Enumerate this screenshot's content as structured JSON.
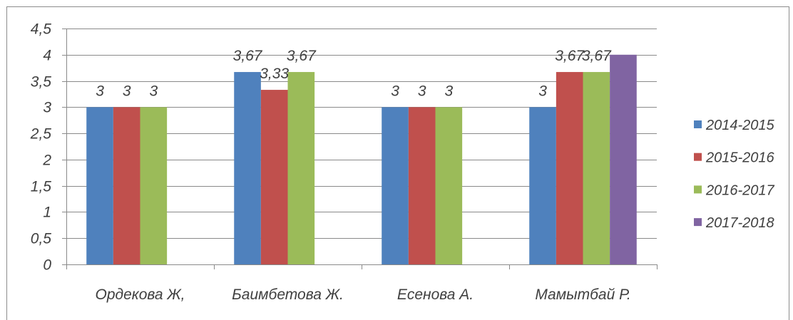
{
  "chart_data": {
    "type": "bar",
    "categories": [
      "Ордекова Ж,",
      "Баимбетова Ж.",
      "Есенова А.",
      "Мамытбай Р."
    ],
    "series": [
      {
        "name": "2014-2015",
        "color": "#4F81BD",
        "values": [
          3,
          3.67,
          3,
          3
        ],
        "labels": [
          "3",
          "3,67",
          "3",
          "3"
        ]
      },
      {
        "name": "2015-2016",
        "color": "#C0504D",
        "values": [
          3,
          3.33,
          3,
          3.67
        ],
        "labels": [
          "3",
          "3,33",
          "3",
          "3,67"
        ]
      },
      {
        "name": "2016-2017",
        "color": "#9BBB59",
        "values": [
          3,
          3.67,
          3,
          3.67
        ],
        "labels": [
          "3",
          "3,67",
          "3",
          "3,67"
        ]
      },
      {
        "name": "2017-2018",
        "color": "#8064A2",
        "values": [
          null,
          null,
          null,
          4
        ],
        "labels": [
          null,
          null,
          null,
          null
        ]
      }
    ],
    "ylim": [
      0,
      4.5
    ],
    "yticks": {
      "values": [
        0,
        0.5,
        1,
        1.5,
        2,
        2.5,
        3,
        3.5,
        4,
        4.5
      ],
      "labels": [
        "0",
        "0,5",
        "1",
        "1,5",
        "2",
        "2,5",
        "3",
        "3,5",
        "4",
        "4,5"
      ]
    },
    "grid": true,
    "legend": "right"
  }
}
